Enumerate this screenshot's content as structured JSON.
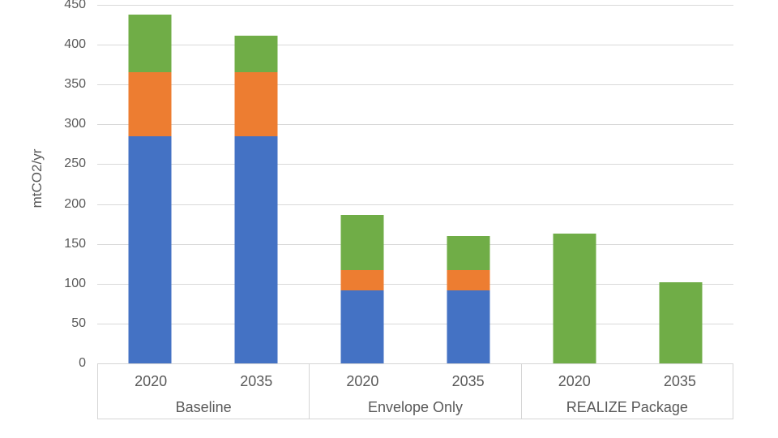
{
  "chart_data": {
    "type": "bar",
    "stacked": true,
    "title": "",
    "ylabel": "mtCO2/yr",
    "xlabel": "",
    "ylim": [
      0,
      450
    ],
    "ytick_interval": 50,
    "yticks": [
      450,
      400,
      350,
      300,
      250,
      200,
      150,
      100,
      50,
      0
    ],
    "grid": true,
    "legend": "none",
    "categories": [
      "2020",
      "2035",
      "2020",
      "2035",
      "2020",
      "2035"
    ],
    "groups": [
      {
        "label": "Baseline",
        "categories": [
          "2020",
          "2035"
        ]
      },
      {
        "label": "Envelope Only",
        "categories": [
          "2020",
          "2035"
        ]
      },
      {
        "label": "REALIZE Package",
        "categories": [
          "2020",
          "2035"
        ]
      }
    ],
    "series": [
      {
        "name": "blue",
        "color": "#4472C4",
        "values": [
          285,
          285,
          92,
          92,
          0,
          0
        ]
      },
      {
        "name": "orange",
        "color": "#ED7D31",
        "values": [
          81,
          81,
          25,
          25,
          0,
          0
        ]
      },
      {
        "name": "green",
        "color": "#70AD47",
        "values": [
          72,
          45,
          69,
          43,
          163,
          102
        ]
      }
    ],
    "totals": [
      438,
      411,
      186,
      160,
      163,
      102
    ]
  },
  "style": {
    "text_color": "#595959",
    "gridline_color": "#d9d9d9",
    "axis_border_color": "#d6d6d6",
    "background": "#ffffff"
  }
}
